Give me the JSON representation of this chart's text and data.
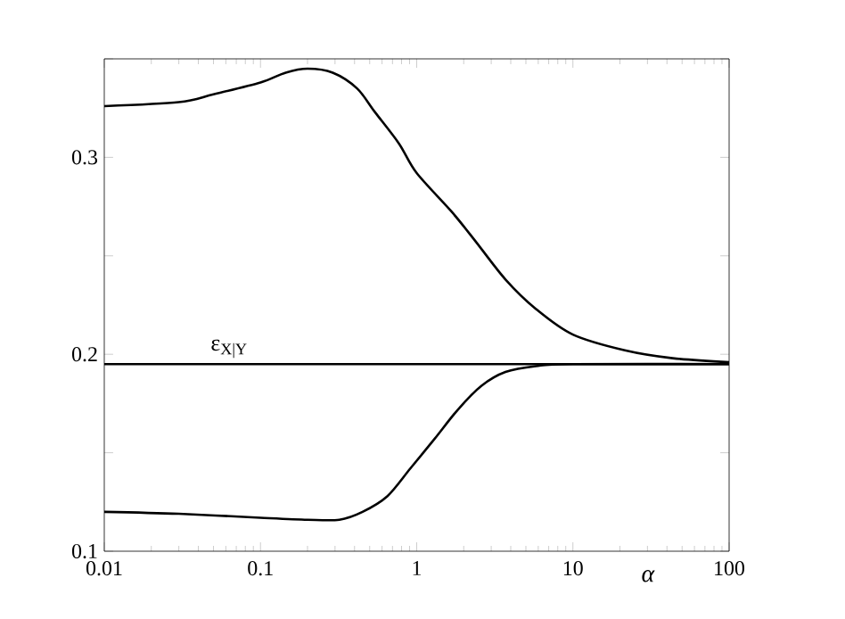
{
  "chart_data": {
    "type": "line",
    "xlabel": "α",
    "log": "x",
    "marker": "none",
    "line_style": "solid",
    "grid": false,
    "xlim": [
      0.01,
      100
    ],
    "ylim": [
      0.1,
      0.35
    ],
    "xticks": [
      {
        "value": 0.01,
        "label": "0.01"
      },
      {
        "value": 0.1,
        "label": "0.1"
      },
      {
        "value": 1,
        "label": "1"
      },
      {
        "value": 10,
        "label": "10"
      },
      {
        "value": 100,
        "label": "100"
      }
    ],
    "yticks": [
      {
        "value": 0.1,
        "label": "0.1"
      },
      {
        "value": 0.15,
        "label": null
      },
      {
        "value": 0.2,
        "label": "0.2"
      },
      {
        "value": 0.25,
        "label": null
      },
      {
        "value": 0.3,
        "label": "0.3"
      },
      {
        "value": 0.35,
        "label": null
      }
    ],
    "ref_lines": [
      {
        "axis": "y",
        "value": 0.195,
        "label": "ε$_{X|Y}$",
        "color": "#000000",
        "line_style": "solid"
      }
    ],
    "series": [
      {
        "color": "#000000",
        "x": [
          0.01,
          0.03,
          0.05,
          0.1,
          0.145,
          0.2,
          0.29,
          0.415,
          0.54,
          0.77,
          1,
          1.69,
          2.4,
          3.7,
          5.8,
          10,
          21.5,
          43.5,
          100
        ],
        "values": [
          0.326,
          0.328,
          0.332,
          0.338,
          0.343,
          0.345,
          0.343,
          0.335,
          0.323,
          0.307,
          0.292,
          0.272,
          0.257,
          0.238,
          0.223,
          0.21,
          0.202,
          0.198,
          0.196
        ]
      },
      {
        "color": "#000000",
        "x": [
          0.01,
          0.03,
          0.1,
          0.2,
          0.32,
          0.45,
          0.65,
          0.91,
          1.3,
          1.84,
          2.6,
          3.7,
          5.8,
          10,
          100
        ],
        "values": [
          0.12,
          0.119,
          0.117,
          0.116,
          0.116,
          0.12,
          0.128,
          0.142,
          0.157,
          0.172,
          0.184,
          0.191,
          0.194,
          0.195,
          0.195
        ]
      }
    ]
  }
}
